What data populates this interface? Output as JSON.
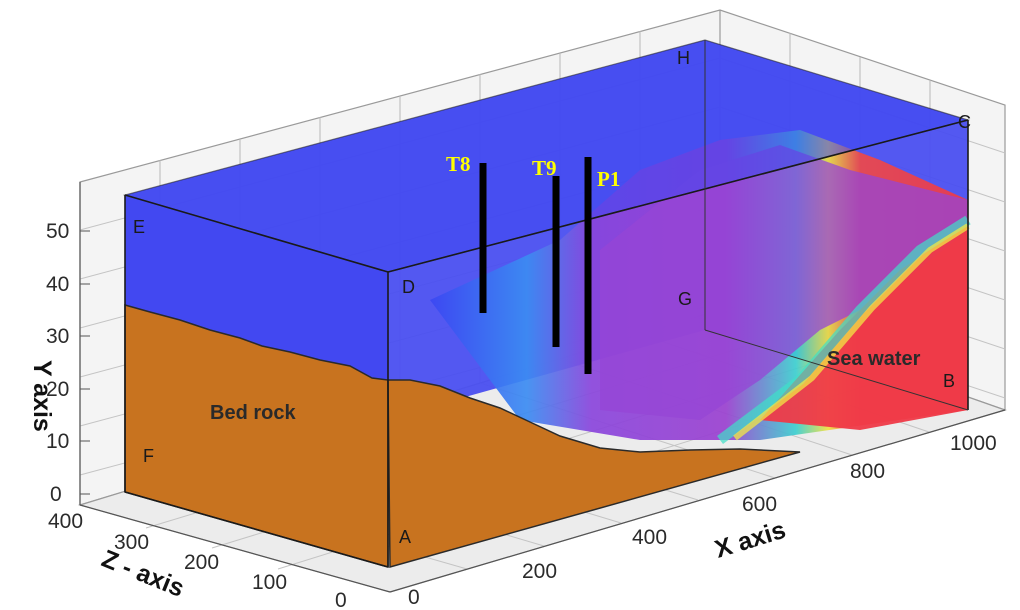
{
  "axes": {
    "x_title": "X axis",
    "y_title": "Y axis",
    "z_title": "Z - axis",
    "x_ticks": [
      "200",
      "400",
      "600",
      "800",
      "1000"
    ],
    "y_ticks": [
      "0",
      "10",
      "20",
      "30",
      "40",
      "50"
    ],
    "z_ticks": [
      "0",
      "100",
      "200",
      "300",
      "400"
    ],
    "x_zero": "0"
  },
  "corners": {
    "a": "A",
    "b": "B",
    "c": "C",
    "d": "D",
    "e": "E",
    "f": "F",
    "g": "G",
    "h": "H"
  },
  "regions": {
    "bedrock": "Bed rock",
    "seawater": "Sea water"
  },
  "wells": [
    {
      "label": "T8"
    },
    {
      "label": "T9"
    },
    {
      "label": "P1"
    }
  ],
  "colors": {
    "freshwater": "#3f48f0",
    "mixing": "#8f3fd8",
    "seawater": "#ef3a48",
    "bedrock": "#c8731f",
    "well": "#000000",
    "well_label": "#ffff00"
  }
}
